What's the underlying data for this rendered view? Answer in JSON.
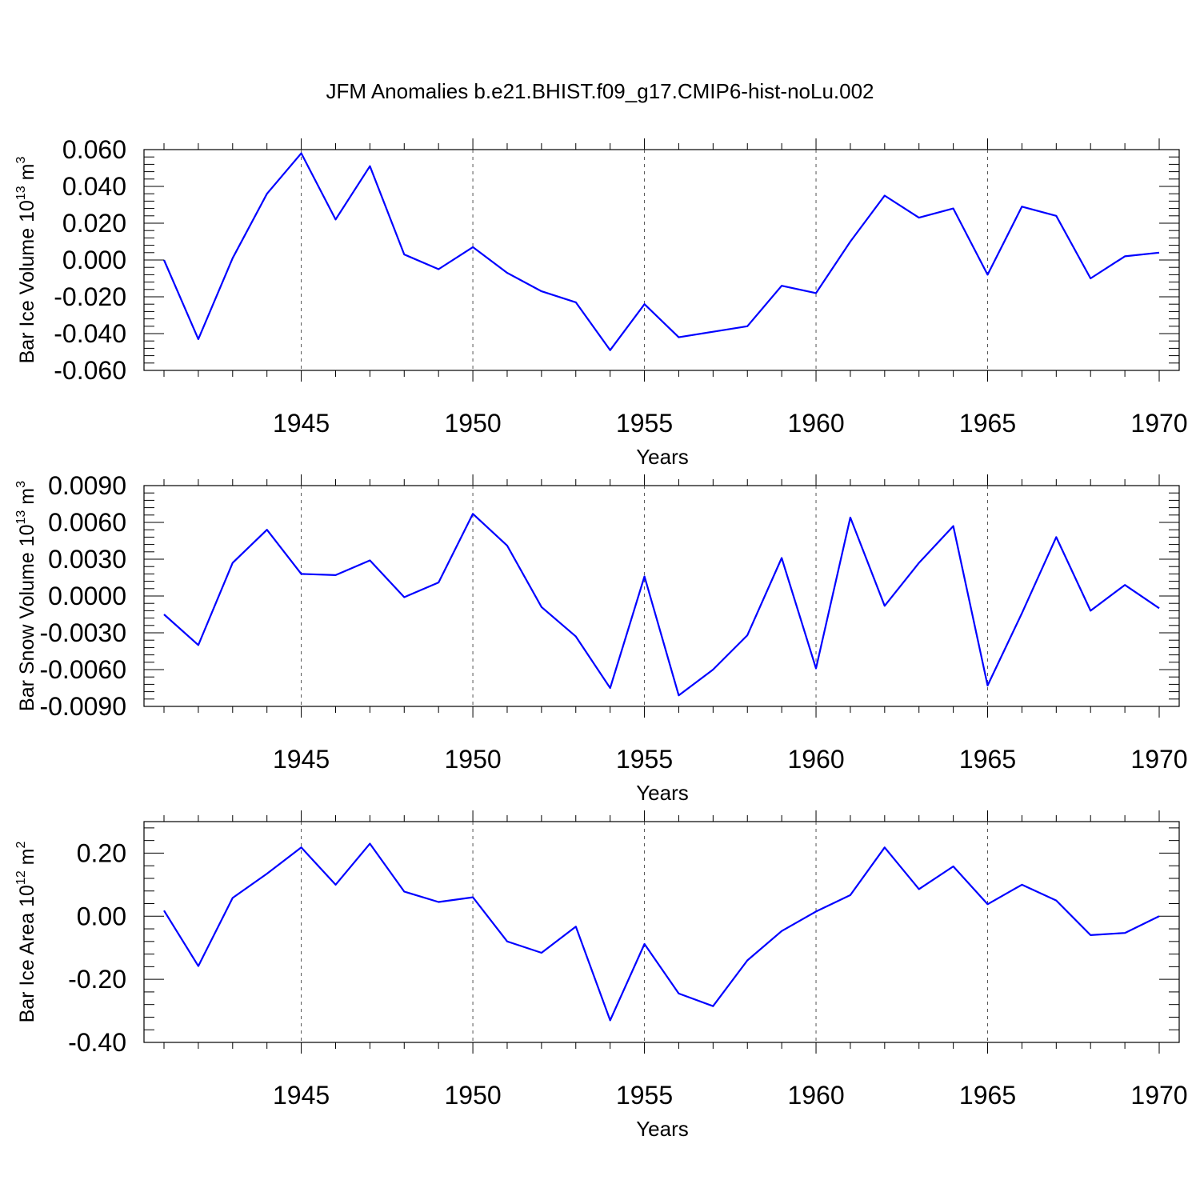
{
  "title": "JFM Anomalies b.e21.BHIST.f09_g17.CMIP6-hist-noLu.002",
  "line_color": "#0000ff",
  "chart_data": [
    {
      "type": "line",
      "ylabel": "Bar Ice Volume 10",
      "ylabel_exp": "13",
      "ylabel_unit": " m",
      "ylabel_unit_exp": "3",
      "xlabel": "Years",
      "xlim": [
        1941,
        1970
      ],
      "ylim": [
        -0.06,
        0.06
      ],
      "yticks": [
        -0.06,
        -0.04,
        -0.02,
        0.0,
        0.02,
        0.04,
        0.06
      ],
      "ytick_labels": [
        "-0.060",
        "-0.040",
        "-0.020",
        "0.000",
        "0.020",
        "0.040",
        "0.060"
      ],
      "xticks": [
        1945,
        1950,
        1955,
        1960,
        1965,
        1970
      ],
      "xtick_labels": [
        "1945",
        "1950",
        "1955",
        "1960",
        "1965",
        "1970"
      ],
      "grid_x": true,
      "series": [
        {
          "name": "Bar Ice Volume",
          "x": [
            1941,
            1942,
            1943,
            1944,
            1945,
            1946,
            1947,
            1948,
            1949,
            1950,
            1951,
            1952,
            1953,
            1954,
            1955,
            1956,
            1957,
            1958,
            1959,
            1960,
            1961,
            1962,
            1963,
            1964,
            1965,
            1966,
            1967,
            1968,
            1969,
            1970
          ],
          "values": [
            0.0,
            -0.043,
            0.001,
            0.036,
            0.058,
            0.022,
            0.051,
            0.003,
            -0.005,
            0.007,
            -0.007,
            -0.017,
            -0.023,
            -0.049,
            -0.024,
            -0.042,
            -0.039,
            -0.036,
            -0.014,
            -0.018,
            0.01,
            0.035,
            0.023,
            0.028,
            -0.008,
            0.029,
            0.024,
            -0.01,
            0.002,
            0.004
          ]
        }
      ]
    },
    {
      "type": "line",
      "ylabel": "Bar Snow Volume 10",
      "ylabel_exp": "13",
      "ylabel_unit": " m",
      "ylabel_unit_exp": "3",
      "xlabel": "Years",
      "xlim": [
        1941,
        1970
      ],
      "ylim": [
        -0.009,
        0.009
      ],
      "yticks": [
        -0.009,
        -0.006,
        -0.003,
        0.0,
        0.003,
        0.006,
        0.009
      ],
      "ytick_labels": [
        "-0.0090",
        "-0.0060",
        "-0.0030",
        "0.0000",
        "0.0030",
        "0.0060",
        "0.0090"
      ],
      "xticks": [
        1945,
        1950,
        1955,
        1960,
        1965,
        1970
      ],
      "xtick_labels": [
        "1945",
        "1950",
        "1955",
        "1960",
        "1965",
        "1970"
      ],
      "grid_x": true,
      "series": [
        {
          "name": "Bar Snow Volume",
          "x": [
            1941,
            1942,
            1943,
            1944,
            1945,
            1946,
            1947,
            1948,
            1949,
            1950,
            1951,
            1952,
            1953,
            1954,
            1955,
            1956,
            1957,
            1958,
            1959,
            1960,
            1961,
            1962,
            1963,
            1964,
            1965,
            1966,
            1967,
            1968,
            1969,
            1970
          ],
          "values": [
            -0.0015,
            -0.004,
            0.0027,
            0.0054,
            0.0018,
            0.0017,
            0.0029,
            -0.0001,
            0.0011,
            0.0067,
            0.0041,
            -0.0009,
            -0.0033,
            -0.0075,
            0.0016,
            -0.0081,
            -0.006,
            -0.0032,
            0.0031,
            -0.0059,
            0.0064,
            -0.0008,
            0.0027,
            0.0057,
            -0.0073,
            -0.0014,
            0.0048,
            -0.0012,
            0.0009,
            -0.001
          ]
        }
      ]
    },
    {
      "type": "line",
      "ylabel": "Bar Ice Area 10",
      "ylabel_exp": "12",
      "ylabel_unit": " m",
      "ylabel_unit_exp": "2",
      "xlabel": "Years",
      "xlim": [
        1941,
        1970
      ],
      "ylim": [
        -0.4,
        0.3
      ],
      "yticks": [
        -0.4,
        -0.2,
        0.0,
        0.2
      ],
      "ytick_labels": [
        "-0.40",
        "-0.20",
        "0.00",
        "0.20"
      ],
      "xticks": [
        1945,
        1950,
        1955,
        1960,
        1965,
        1970
      ],
      "xtick_labels": [
        "1945",
        "1950",
        "1955",
        "1960",
        "1965",
        "1970"
      ],
      "grid_x": true,
      "series": [
        {
          "name": "Bar Ice Area",
          "x": [
            1941,
            1942,
            1943,
            1944,
            1945,
            1946,
            1947,
            1948,
            1949,
            1950,
            1951,
            1952,
            1953,
            1954,
            1955,
            1956,
            1957,
            1958,
            1959,
            1960,
            1961,
            1962,
            1963,
            1964,
            1965,
            1966,
            1967,
            1968,
            1969,
            1970
          ],
          "values": [
            0.018,
            -0.158,
            0.058,
            0.135,
            0.218,
            0.1,
            0.23,
            0.078,
            0.045,
            0.06,
            -0.08,
            -0.116,
            -0.033,
            -0.33,
            -0.088,
            -0.245,
            -0.285,
            -0.14,
            -0.047,
            0.015,
            0.067,
            0.218,
            0.086,
            0.158,
            0.038,
            0.1,
            0.05,
            -0.06,
            -0.053,
            0.0
          ]
        }
      ]
    }
  ]
}
